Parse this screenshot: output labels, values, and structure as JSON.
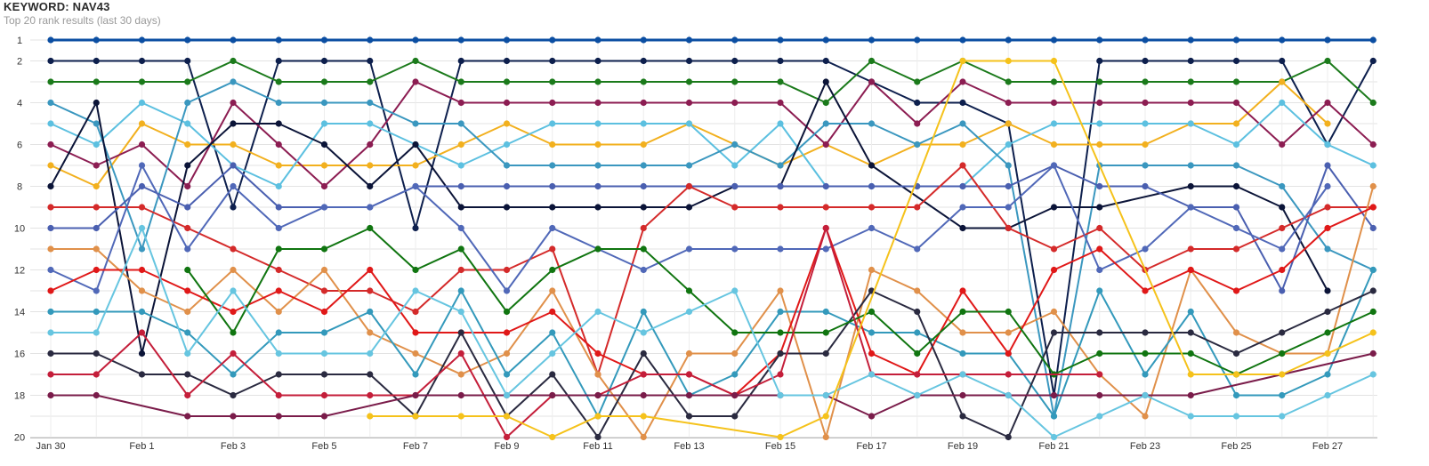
{
  "chart_title": "KEYWORD: NAV43",
  "chart_subtitle": "Top 20 rank results (last 30 days)",
  "chart_data": {
    "type": "line",
    "x": [
      "Jan 30",
      "Jan 31",
      "Feb 1",
      "Feb 2",
      "Feb 3",
      "Feb 4",
      "Feb 5",
      "Feb 6",
      "Feb 7",
      "Feb 8",
      "Feb 9",
      "Feb 10",
      "Feb 11",
      "Feb 12",
      "Feb 13",
      "Feb 14",
      "Feb 15",
      "Feb 16",
      "Feb 17",
      "Feb 18",
      "Feb 19",
      "Feb 20",
      "Feb 21",
      "Feb 22",
      "Feb 23",
      "Feb 24",
      "Feb 25",
      "Feb 26",
      "Feb 27",
      "Feb 28"
    ],
    "x_tick_labels": [
      "Jan 30",
      "Feb 1",
      "Feb 3",
      "Feb 5",
      "Feb 7",
      "Feb 9",
      "Feb 11",
      "Feb 13",
      "Feb 15",
      "Feb 17",
      "Feb 19",
      "Feb 21",
      "Feb 23",
      "Feb 25",
      "Feb 27"
    ],
    "y_tick_labels": [
      "1",
      "2",
      "4",
      "6",
      "8",
      "10",
      "12",
      "14",
      "16",
      "18",
      "20"
    ],
    "ylim": [
      1,
      20
    ],
    "y_reversed": true,
    "grid": true,
    "series": [
      {
        "color": "#0b4ea2",
        "values": [
          1,
          1,
          1,
          1,
          1,
          1,
          1,
          1,
          1,
          1,
          1,
          1,
          1,
          1,
          1,
          1,
          1,
          1,
          1,
          1,
          1,
          1,
          1,
          1,
          1,
          1,
          1,
          1,
          1,
          1
        ]
      },
      {
        "color": "#0d1f4d",
        "values": [
          2,
          2,
          2,
          2,
          9,
          2,
          2,
          2,
          10,
          2,
          2,
          2,
          2,
          2,
          2,
          2,
          2,
          2,
          3,
          4,
          4,
          5,
          18,
          2,
          2,
          2,
          2,
          2,
          6,
          2
        ]
      },
      {
        "color": "#1b7a1b",
        "values": [
          3,
          3,
          3,
          3,
          2,
          3,
          3,
          3,
          2,
          3,
          3,
          3,
          3,
          3,
          3,
          3,
          3,
          4,
          2,
          3,
          2,
          3,
          3,
          3,
          3,
          3,
          3,
          3,
          2,
          4
        ]
      },
      {
        "color": "#f2b01e",
        "values": [
          7,
          8,
          5,
          6,
          6,
          7,
          7,
          7,
          7,
          6,
          5,
          6,
          6,
          6,
          5,
          6,
          7,
          6,
          7,
          6,
          6,
          5,
          6,
          6,
          6,
          5,
          5,
          3,
          5,
          null
        ]
      },
      {
        "color": "#8c1d52",
        "values": [
          6,
          7,
          6,
          8,
          4,
          6,
          8,
          6,
          3,
          4,
          4,
          4,
          4,
          4,
          4,
          4,
          4,
          6,
          3,
          5,
          3,
          4,
          4,
          4,
          4,
          4,
          4,
          6,
          4,
          6
        ]
      },
      {
        "color": "#5cc0e0",
        "values": [
          5,
          6,
          4,
          5,
          7,
          8,
          5,
          5,
          6,
          7,
          6,
          5,
          5,
          5,
          5,
          7,
          5,
          8,
          8,
          8,
          8,
          6,
          5,
          5,
          5,
          5,
          6,
          4,
          6,
          7
        ]
      },
      {
        "color": "#3a97bf",
        "values": [
          4,
          5,
          11,
          4,
          3,
          4,
          4,
          4,
          5,
          5,
          7,
          7,
          7,
          7,
          7,
          6,
          7,
          5,
          5,
          6,
          5,
          7,
          19,
          7,
          7,
          7,
          7,
          8,
          11,
          12
        ]
      },
      {
        "color": "#0b1438",
        "values": [
          8,
          4,
          16,
          7,
          5,
          5,
          6,
          8,
          6,
          9,
          9,
          9,
          9,
          9,
          9,
          8,
          8,
          3,
          7,
          null,
          10,
          10,
          9,
          9,
          null,
          8,
          8,
          9,
          13,
          null
        ]
      },
      {
        "color": "#4a5fb0",
        "values": [
          10,
          10,
          8,
          9,
          7,
          9,
          9,
          9,
          8,
          8,
          8,
          8,
          8,
          8,
          8,
          8,
          8,
          8,
          8,
          8,
          8,
          8,
          7,
          8,
          8,
          9,
          9,
          13,
          7,
          10
        ]
      },
      {
        "color": "#d42a2a",
        "values": [
          9,
          9,
          9,
          10,
          11,
          12,
          13,
          13,
          14,
          12,
          12,
          11,
          17,
          10,
          8,
          9,
          9,
          9,
          9,
          9,
          7,
          10,
          11,
          10,
          12,
          11,
          11,
          10,
          9,
          9
        ]
      },
      {
        "color": "#e0904a",
        "values": [
          11,
          11,
          13,
          14,
          12,
          14,
          12,
          15,
          16,
          17,
          16,
          13,
          17,
          20,
          16,
          16,
          13,
          20,
          12,
          13,
          15,
          15,
          14,
          17,
          19,
          12,
          15,
          16,
          16,
          8
        ]
      },
      {
        "color": "#5068b8",
        "values": [
          12,
          13,
          7,
          11,
          8,
          10,
          9,
          9,
          8,
          10,
          13,
          10,
          11,
          12,
          11,
          11,
          11,
          11,
          10,
          11,
          9,
          9,
          7,
          12,
          11,
          9,
          10,
          11,
          8,
          null
        ]
      },
      {
        "color": "#3399bb",
        "values": [
          14,
          14,
          14,
          15,
          17,
          15,
          15,
          14,
          17,
          13,
          17,
          15,
          19,
          14,
          18,
          17,
          14,
          14,
          15,
          15,
          16,
          16,
          19,
          13,
          17,
          14,
          18,
          18,
          17,
          12
        ]
      },
      {
        "color": "#e01818",
        "values": [
          13,
          12,
          12,
          13,
          14,
          13,
          14,
          12,
          15,
          15,
          15,
          14,
          16,
          17,
          17,
          18,
          16,
          10,
          16,
          17,
          13,
          16,
          12,
          11,
          13,
          12,
          13,
          12,
          10,
          9
        ]
      },
      {
        "color": "#2a2a40",
        "values": [
          16,
          16,
          17,
          17,
          18,
          17,
          17,
          17,
          19,
          15,
          19,
          17,
          20,
          16,
          19,
          19,
          16,
          16,
          13,
          14,
          19,
          20,
          15,
          15,
          15,
          15,
          16,
          15,
          14,
          13
        ]
      },
      {
        "color": "#107510",
        "values": [
          null,
          null,
          null,
          12,
          15,
          11,
          11,
          10,
          12,
          11,
          14,
          12,
          11,
          11,
          13,
          15,
          15,
          15,
          14,
          16,
          14,
          14,
          17,
          16,
          16,
          16,
          17,
          16,
          15,
          14
        ]
      },
      {
        "color": "#c41e3a",
        "values": [
          17,
          17,
          15,
          18,
          16,
          18,
          18,
          18,
          18,
          16,
          20,
          18,
          18,
          17,
          17,
          18,
          17,
          10,
          17,
          17,
          17,
          17,
          null,
          17,
          null,
          null,
          null,
          null,
          null,
          null
        ]
      },
      {
        "color": "#7a1c4a",
        "values": [
          18,
          18,
          null,
          19,
          19,
          19,
          19,
          null,
          18,
          18,
          18,
          18,
          18,
          18,
          18,
          18,
          18,
          18,
          19,
          18,
          18,
          18,
          18,
          18,
          18,
          18,
          null,
          null,
          null,
          16
        ]
      },
      {
        "color": "#66c5e0",
        "values": [
          15,
          15,
          10,
          16,
          13,
          16,
          16,
          16,
          13,
          14,
          18,
          16,
          14,
          15,
          14,
          13,
          18,
          18,
          17,
          18,
          17,
          18,
          20,
          19,
          18,
          19,
          19,
          19,
          18,
          17
        ]
      },
      {
        "color": "#f5c21b",
        "values": [
          null,
          null,
          null,
          null,
          null,
          null,
          null,
          19,
          19,
          19,
          19,
          20,
          19,
          19,
          null,
          null,
          20,
          19,
          null,
          null,
          2,
          2,
          2,
          null,
          null,
          17,
          17,
          17,
          16,
          15
        ]
      }
    ]
  }
}
